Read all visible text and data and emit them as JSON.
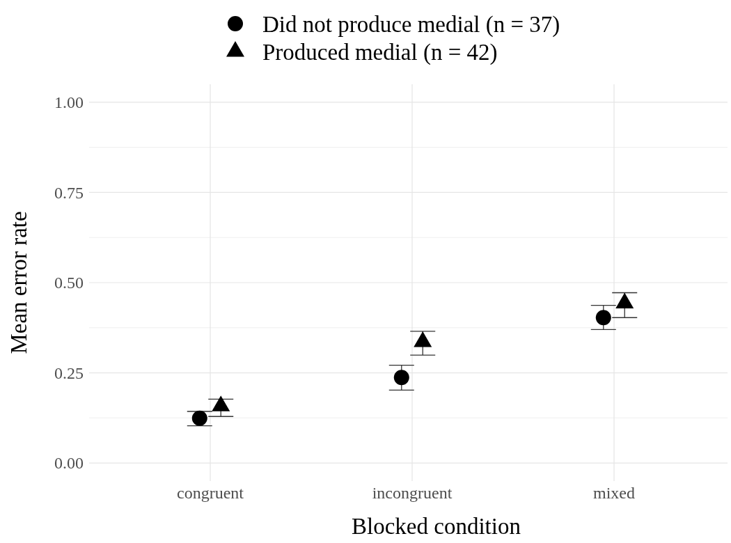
{
  "chart_data": {
    "type": "scatter",
    "xlabel": "Blocked condition",
    "ylabel": "Mean error rate",
    "categories": [
      "congruent",
      "incongruent",
      "mixed"
    ],
    "series": [
      {
        "name": "Did not produce medial (n = 37)",
        "color": "#000000",
        "marker": "circle",
        "values": [
          0.124,
          0.237,
          0.403
        ],
        "errors": [
          [
            0.103,
            0.143
          ],
          [
            0.202,
            0.271
          ],
          [
            0.37,
            0.437
          ]
        ]
      },
      {
        "name": "Produced medial (n = 42)",
        "color": "#000000",
        "marker": "triangle",
        "values": [
          0.158,
          0.336,
          0.443
        ],
        "errors": [
          [
            0.129,
            0.177
          ],
          [
            0.299,
            0.365
          ],
          [
            0.403,
            0.472
          ]
        ]
      }
    ],
    "ylim": [
      -0.05,
      1.05
    ],
    "yticks": [
      {
        "value": 0,
        "label": "0.00"
      },
      {
        "value": 0.25,
        "label": "0.25"
      },
      {
        "value": 0.5,
        "label": "0.50"
      },
      {
        "value": 0.75,
        "label": "0.75"
      },
      {
        "value": 1,
        "label": "1.00"
      }
    ],
    "grid": true,
    "legend": "top"
  }
}
